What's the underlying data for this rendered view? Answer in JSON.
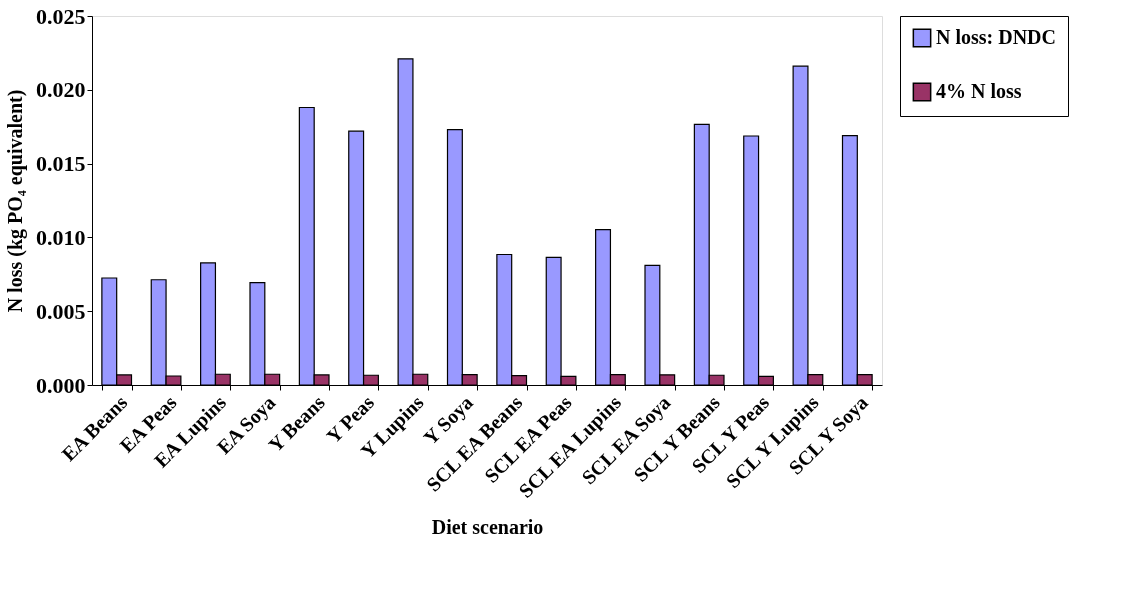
{
  "chart_data": {
    "type": "bar",
    "xlabel": "Diet scenario",
    "ylabel": "N loss (kg PO₄ equivalent)",
    "categories": [
      "EA Beans",
      "EA Peas",
      "EA Lupins",
      "EA Soya",
      "Y Beans",
      "Y Peas",
      "Y Lupins",
      "Y Soya",
      "SCL EA Beans",
      "SCL EA Peas",
      "SCL EA Lupins",
      "SCL EA Soya",
      "SCL Y Beans",
      "SCL Y Peas",
      "SCL Y Lupins",
      "SCL Y Soya"
    ],
    "series": [
      {
        "name": "N loss: DNDC",
        "color": "#9999ff",
        "values": [
          0.00725,
          0.00713,
          0.00827,
          0.00693,
          0.0188,
          0.0172,
          0.0221,
          0.0173,
          0.00884,
          0.00864,
          0.01052,
          0.0081,
          0.01766,
          0.01687,
          0.0216,
          0.0169
        ]
      },
      {
        "name": "4% N loss",
        "color": "#993366",
        "values": [
          0.00068,
          0.00061,
          0.00073,
          0.00073,
          0.00068,
          0.00066,
          0.00073,
          0.0007,
          0.00064,
          0.00058,
          0.0007,
          0.00069,
          0.00066,
          0.00058,
          0.0007,
          0.0007
        ]
      }
    ],
    "ylim": [
      0,
      0.025
    ],
    "yticks": [
      {
        "value": 0,
        "label": "0.000"
      },
      0.005,
      {
        "value": 0.01,
        "label": "0.010"
      },
      0.015,
      {
        "value": 0.02,
        "label": "0.020"
      },
      0.025
    ],
    "grid": false,
    "legend": "right"
  }
}
